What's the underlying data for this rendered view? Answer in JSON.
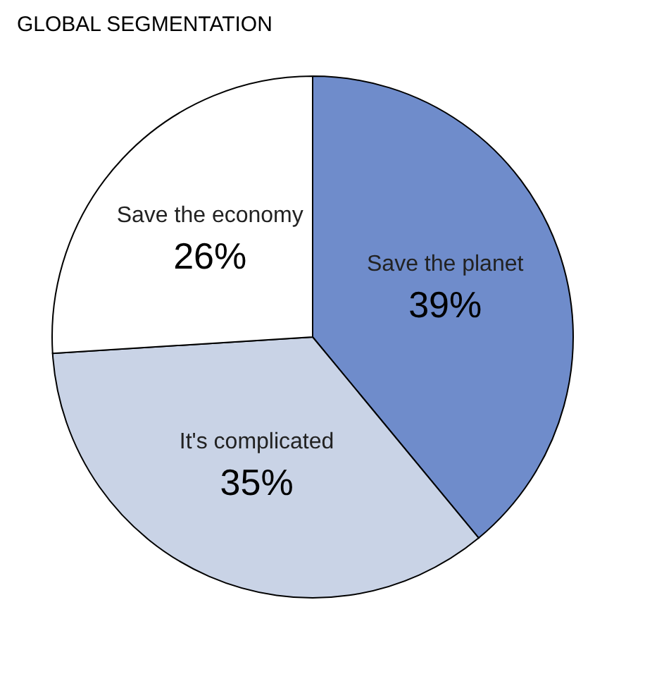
{
  "chart_data": {
    "type": "pie",
    "title": "GLOBAL SEGMENTATION",
    "categories": [
      "Save the planet",
      "It's complicated",
      "Save the economy"
    ],
    "values": [
      39,
      35,
      26
    ],
    "value_labels": [
      "39%",
      "35%",
      "26%"
    ],
    "colors": [
      "#6f8ccb",
      "#c9d3e6",
      "#ffffff"
    ],
    "legend": false
  }
}
